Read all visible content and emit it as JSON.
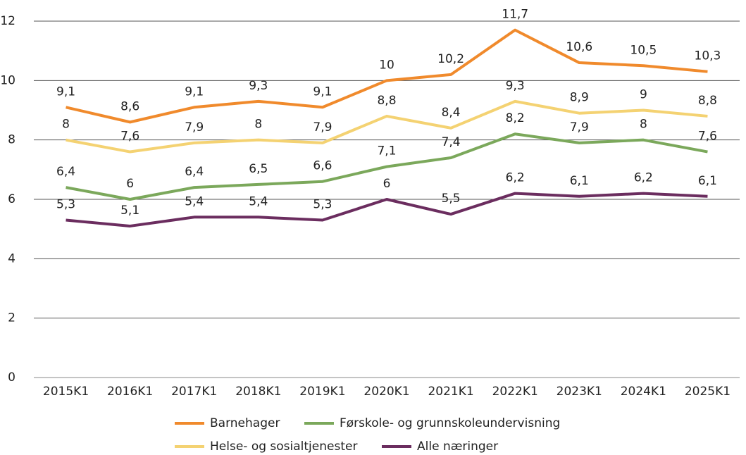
{
  "chart_data": {
    "type": "line",
    "categories": [
      "2015K1",
      "2016K1",
      "2017K1",
      "2018K1",
      "2019K1",
      "2020K1",
      "2021K1",
      "2022K1",
      "2023K1",
      "2024K1",
      "2025K1"
    ],
    "series": [
      {
        "name": "Barnehager",
        "color": "#f08a2c",
        "values": [
          9.1,
          8.6,
          9.1,
          9.3,
          9.1,
          10,
          10.2,
          11.7,
          10.6,
          10.5,
          10.3
        ],
        "value_labels": [
          "9,1",
          "8,6",
          "9,1",
          "9,3",
          "9,1",
          "10",
          "10,2",
          "11,7",
          "10,6",
          "10,5",
          "10,3"
        ]
      },
      {
        "name": "Førskole- og grunnskoleundervisning",
        "color": "#7ba85b",
        "values": [
          6.4,
          6,
          6.4,
          6.5,
          6.6,
          7.1,
          7.4,
          8.2,
          7.9,
          8,
          7.6
        ],
        "value_labels": [
          "6,4",
          "6",
          "6,4",
          "6,5",
          "6,6",
          "7,1",
          "7,4",
          "8,2",
          "7,9",
          "8",
          "7,6"
        ]
      },
      {
        "name": "Helse- og sosialtjenester",
        "color": "#f4d272",
        "values": [
          8,
          7.6,
          7.9,
          8,
          7.9,
          8.8,
          8.4,
          9.3,
          8.9,
          9,
          8.8
        ],
        "value_labels": [
          "8",
          "7,6",
          "7,9",
          "8",
          "7,9",
          "8,8",
          "8,4",
          "9,3",
          "8,9",
          "9",
          "8,8"
        ]
      },
      {
        "name": "Alle næringer",
        "color": "#6b2d5f",
        "values": [
          5.3,
          5.1,
          5.4,
          5.4,
          5.3,
          6,
          5.5,
          6.2,
          6.1,
          6.2,
          6.1
        ],
        "value_labels": [
          "5,3",
          "5,1",
          "5,4",
          "5,4",
          "5,3",
          "6",
          "5,5",
          "6,2",
          "6,1",
          "6,2",
          "6,1"
        ]
      }
    ],
    "ylim": [
      0,
      12
    ],
    "yticks": [
      0,
      2,
      4,
      6,
      8,
      10,
      12
    ],
    "grid": true
  }
}
